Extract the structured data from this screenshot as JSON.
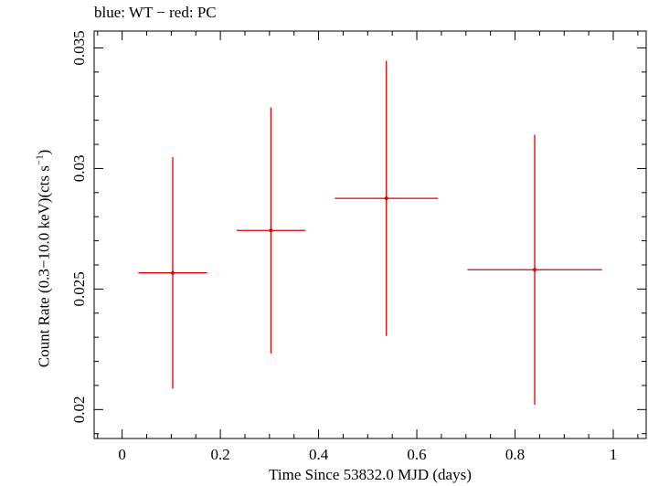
{
  "chart_data": {
    "type": "scatter",
    "title": "blue: WT − red: PC",
    "xlabel": "Time Since 53832.0 MJD (days)",
    "ylabel": {
      "main": "Count Rate (0.3−10.0 keV)(cts s",
      "sup": "−1",
      "close": ")"
    },
    "xlim": [
      -0.057,
      1.067
    ],
    "ylim": [
      0.0188,
      0.0357
    ],
    "xticks": [
      0,
      0.2,
      0.4,
      0.6,
      0.8,
      1
    ],
    "xtick_labels": [
      "0",
      "0.2",
      "0.4",
      "0.6",
      "0.8",
      "1"
    ],
    "yticks": [
      0.02,
      0.025,
      0.03,
      0.035
    ],
    "ytick_labels": [
      "0.02",
      "0.025",
      "0.03",
      "0.035"
    ],
    "grid": false,
    "series": [
      {
        "color": "#e00000",
        "points": [
          {
            "x": 0.103,
            "y": 0.02567,
            "xerr": 0.07,
            "yerr": 0.0048
          },
          {
            "x": 0.303,
            "y": 0.02743,
            "xerr": 0.07,
            "yerr": 0.0051
          },
          {
            "x": 0.538,
            "y": 0.02876,
            "xerr": 0.105,
            "yerr": 0.0057
          },
          {
            "x": 0.84,
            "y": 0.0258,
            "xerr": 0.137,
            "yerr": 0.0056
          }
        ]
      }
    ]
  }
}
